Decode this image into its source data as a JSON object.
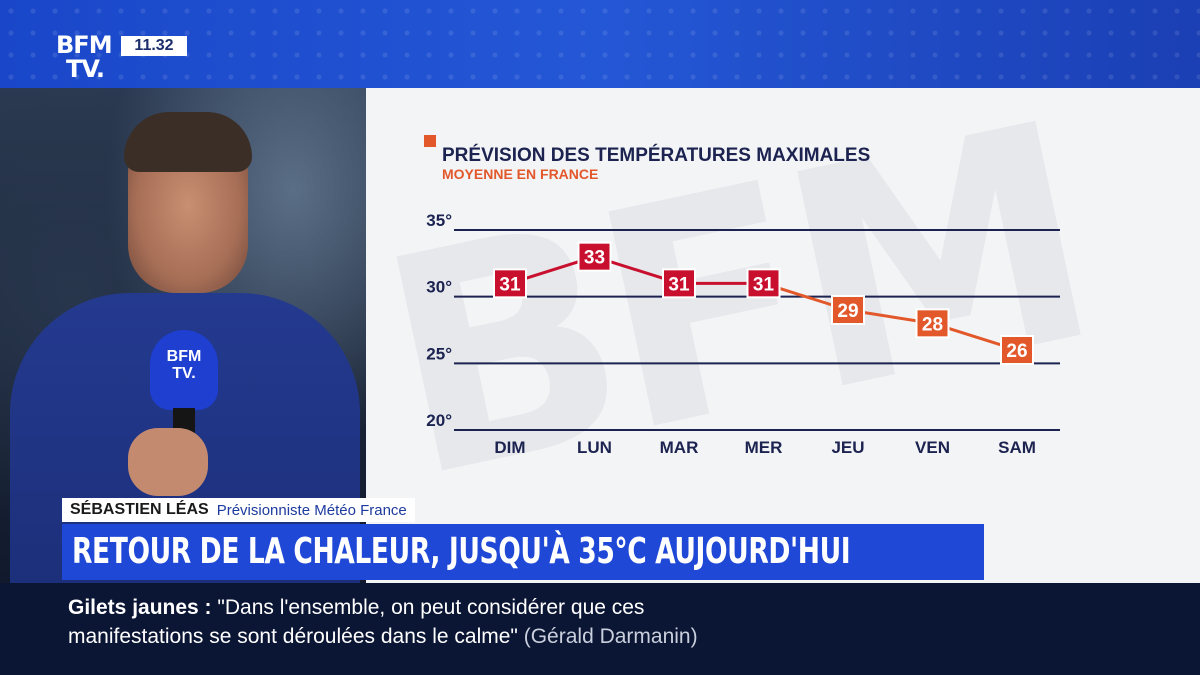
{
  "channel": {
    "logo_line1": "BFM",
    "logo_line2": "TV.",
    "time": "11.32"
  },
  "mic_label": {
    "line1": "BFM",
    "line2": "TV."
  },
  "presenter": {
    "name": "SÉBASTIEN LÉAS",
    "role": "Prévisionniste Météo France"
  },
  "headline": "RETOUR DE LA CHALEUR, JUSQU'À 35°C AUJOURD'HUI",
  "ticker": {
    "topic": "Gilets jaunes :",
    "quote_line1": "\"Dans l'ensemble, on peut considérer que ces",
    "quote_line2": "manifestations se sont déroulées dans le calme\"",
    "source": "(Gérald Darmanin)"
  },
  "colors": {
    "brand_blue": "#1f48d6",
    "series_hot": "#c8102e",
    "series_warm": "#e2582b",
    "axis": "#1c2350"
  },
  "chart_data": {
    "type": "line",
    "title": "PRÉVISION DES TEMPÉRATURES MAXIMALES",
    "subtitle": "MOYENNE EN FRANCE",
    "categories": [
      "DIM",
      "LUN",
      "MAR",
      "MER",
      "JEU",
      "VEN",
      "SAM"
    ],
    "series": [
      {
        "values": [
          31,
          33,
          31,
          31,
          29,
          28,
          26
        ]
      }
    ],
    "ylim": [
      20,
      35
    ],
    "yticks": [
      "20°",
      "25°",
      "30°",
      "35°"
    ],
    "ytick_values": [
      20,
      25,
      30,
      35
    ],
    "grid": true
  }
}
